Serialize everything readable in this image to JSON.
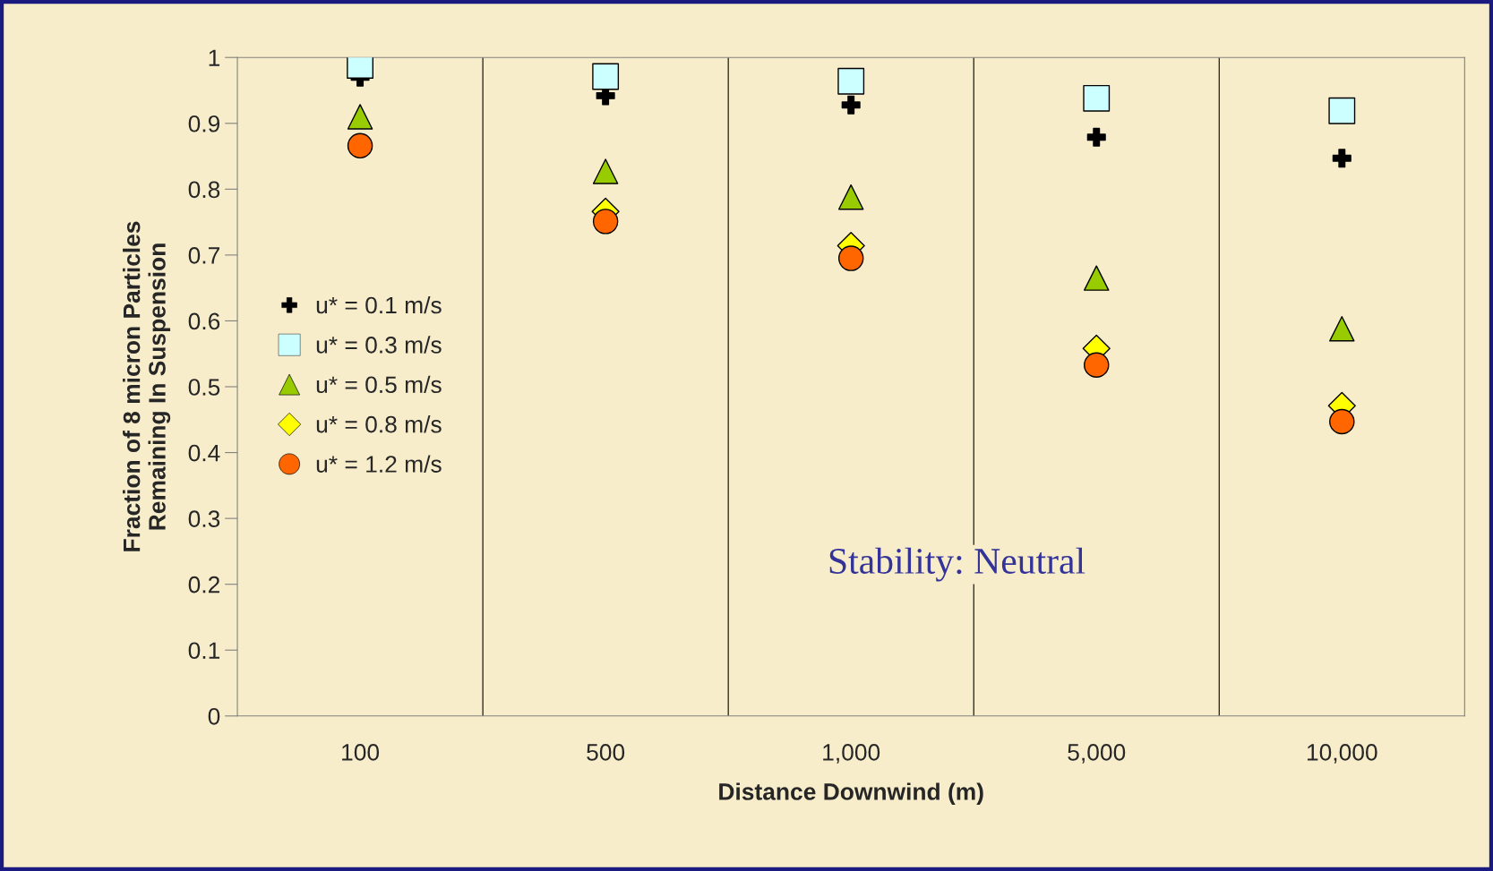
{
  "chart_data": {
    "type": "scatter",
    "categories": [
      "100",
      "500",
      "1,000",
      "5,000",
      "10,000"
    ],
    "series": [
      {
        "name": "u* = 0.1 m/s",
        "color": "#000000",
        "marker": "cross",
        "values": [
          0.97,
          0.942,
          0.928,
          0.879,
          0.847
        ]
      },
      {
        "name": "u* = 0.3 m/s",
        "color": "#ccffff",
        "marker": "square",
        "values": [
          0.988,
          0.971,
          0.964,
          0.938,
          0.919
        ]
      },
      {
        "name": "u* = 0.5 m/s",
        "color": "#99cc00",
        "marker": "triangle",
        "values": [
          0.91,
          0.827,
          0.788,
          0.665,
          0.588
        ]
      },
      {
        "name": "u* = 0.8 m/s",
        "color": "#ffff00",
        "marker": "diamond",
        "values": [
          null,
          0.766,
          0.714,
          0.558,
          0.471
        ]
      },
      {
        "name": "u* = 1.2 m/s",
        "color": "#ff6600",
        "marker": "circle",
        "values": [
          0.866,
          0.751,
          0.695,
          0.533,
          0.447
        ]
      }
    ],
    "xlabel": "Distance Downwind (m)",
    "ylabel": "Fraction of 8 micron Particles\nRemaining In Suspension",
    "ylim": [
      0,
      1
    ],
    "yticks": [
      0,
      0.1,
      0.2,
      0.3,
      0.4,
      0.5,
      0.6,
      0.7,
      0.8,
      0.9,
      1
    ],
    "grid": "x",
    "legend": "left",
    "annotations": [
      "Stability: Neutral"
    ]
  }
}
